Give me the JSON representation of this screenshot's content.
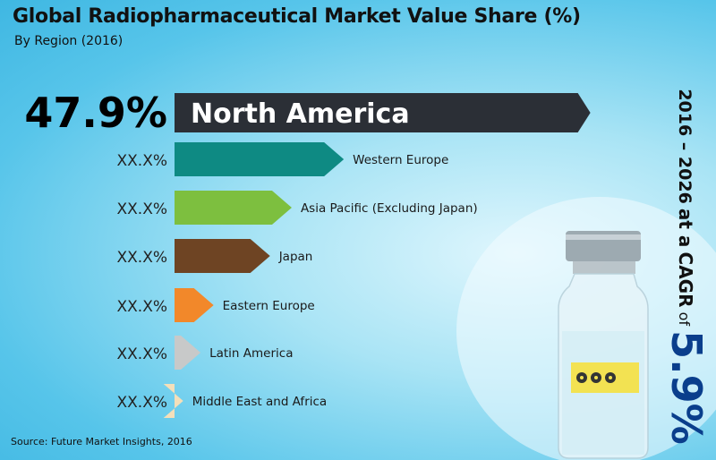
{
  "title": "Global Radiopharmaceutical Market Value Share (%)",
  "subtitle": "By Region (2016)",
  "source": "Source: Future Market Insights, 2016",
  "cagr": {
    "period": "2016 – 2026",
    "at_a": "at a",
    "label": "CAGR",
    "of": "of",
    "value": "5.9%"
  },
  "chart_data": {
    "type": "bar",
    "orientation": "horizontal",
    "categories": [
      "North America",
      "Western Europe",
      "Asia Pacific (Excluding Japan)",
      "Japan",
      "Eastern Europe",
      "Latin America",
      "Middle East and Africa"
    ],
    "value_labels": [
      "47.9%",
      "XX.X%",
      "XX.X%",
      "XX.X%",
      "XX.X%",
      "XX.X%",
      "XX.X%"
    ],
    "values": [
      47.9,
      19.5,
      13.5,
      11.0,
      4.5,
      3.0,
      1.0
    ],
    "colors": [
      "#2b2f36",
      "#0e8a83",
      "#7dbf3f",
      "#6e4423",
      "#f2882a",
      "#c8c9c9",
      "#f4dfba"
    ],
    "xlim": [
      0,
      50
    ]
  }
}
